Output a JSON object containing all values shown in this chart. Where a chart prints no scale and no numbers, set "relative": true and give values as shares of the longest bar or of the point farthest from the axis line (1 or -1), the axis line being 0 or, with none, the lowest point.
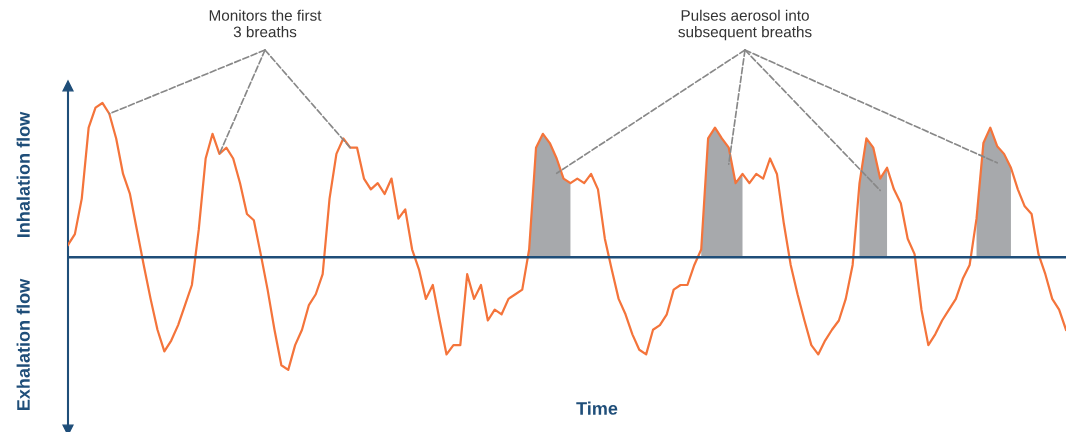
{
  "chart_data": {
    "type": "line",
    "relative": true,
    "xlabel": "Time",
    "ylabel": "Inhalation flow",
    "ref_lines": [
      {
        "axis": "y",
        "value": 0,
        "color": "#1f4e79"
      }
    ],
    "annotations": [
      "Monitors the first\n3 breaths",
      "Pulses aerosol into\nsubsequent breaths",
      "Exhalation flow"
    ],
    "categories": [
      null,
      null,
      null,
      null,
      null,
      null,
      null,
      null,
      null,
      null,
      null,
      null,
      null,
      null,
      null,
      null,
      null,
      null,
      null,
      null,
      null,
      null,
      null,
      null,
      null,
      null,
      null,
      null,
      null,
      null,
      null,
      null,
      null,
      null,
      null,
      null,
      null,
      null,
      null,
      null,
      null,
      null,
      null,
      null,
      null,
      null,
      null,
      null,
      null,
      null,
      null,
      null,
      null,
      null,
      null,
      null,
      null,
      null,
      null,
      null,
      null,
      null,
      null,
      null,
      null,
      null,
      null,
      null,
      null,
      null,
      null,
      null,
      null,
      null,
      null,
      null,
      null,
      null,
      null,
      null,
      null,
      null,
      null,
      null,
      null,
      null,
      null,
      null,
      null,
      null,
      null,
      null,
      null,
      null,
      null,
      null,
      null,
      null,
      null,
      null,
      null,
      null,
      null,
      null,
      null,
      null,
      null,
      null,
      null,
      null,
      null,
      null,
      null,
      null,
      null,
      null,
      null,
      null,
      null,
      null,
      null,
      null,
      null,
      null,
      null,
      null,
      null,
      null,
      null,
      null,
      null,
      null,
      null,
      null,
      null,
      null,
      null,
      null,
      null,
      null,
      null,
      null,
      null,
      null,
      null,
      null
    ],
    "series": [
      {
        "color": "#f4743b",
        "values": [
          0.08,
          0.15,
          0.38,
          0.84,
          0.97,
          1.0,
          0.93,
          0.77,
          0.54,
          0.41,
          0.18,
          -0.05,
          -0.27,
          -0.47,
          -0.61,
          -0.54,
          -0.44,
          -0.31,
          -0.18,
          0.18,
          0.64,
          0.8,
          0.67,
          0.71,
          0.64,
          0.48,
          0.28,
          0.24,
          0.02,
          -0.21,
          -0.47,
          -0.7,
          -0.73,
          -0.57,
          -0.47,
          -0.31,
          -0.24,
          -0.11,
          0.38,
          0.67,
          0.77,
          0.71,
          0.71,
          0.51,
          0.44,
          0.48,
          0.41,
          0.51,
          0.25,
          0.31,
          0.05,
          -0.08,
          -0.27,
          -0.18,
          -0.41,
          -0.63,
          -0.57,
          -0.57,
          -0.11,
          -0.27,
          -0.18,
          -0.41,
          -0.34,
          -0.37,
          -0.27,
          -0.24,
          -0.21,
          0.05,
          0.71,
          0.8,
          0.74,
          0.64,
          0.51,
          0.48,
          0.51,
          0.48,
          0.54,
          0.44,
          0.12,
          -0.08,
          -0.27,
          -0.37,
          -0.5,
          -0.6,
          -0.63,
          -0.47,
          -0.44,
          -0.37,
          -0.21,
          -0.18,
          -0.18,
          -0.05,
          0.05,
          0.77,
          0.84,
          0.77,
          0.71,
          0.48,
          0.54,
          0.48,
          0.54,
          0.51,
          0.64,
          0.54,
          0.22,
          -0.05,
          -0.24,
          -0.41,
          -0.57,
          -0.63,
          -0.54,
          -0.47,
          -0.41,
          -0.27,
          -0.05,
          0.48,
          0.77,
          0.71,
          0.51,
          0.58,
          0.44,
          0.35,
          0.12,
          0.02,
          -0.34,
          -0.57,
          -0.5,
          -0.41,
          -0.34,
          -0.27,
          -0.14,
          -0.05,
          0.25,
          0.74,
          0.84,
          0.72,
          0.67,
          0.58,
          0.44,
          0.33,
          0.28,
          0.02,
          -0.11,
          -0.27,
          -0.34,
          -0.47
        ]
      },
      {
        "type": "area",
        "color": "#a7a9ac",
        "values": [
          null,
          null,
          null,
          null,
          null,
          null,
          null,
          null,
          null,
          null,
          null,
          null,
          null,
          null,
          null,
          null,
          null,
          null,
          null,
          null,
          null,
          null,
          null,
          null,
          null,
          null,
          null,
          null,
          null,
          null,
          null,
          null,
          null,
          null,
          null,
          null,
          null,
          null,
          null,
          null,
          null,
          null,
          null,
          null,
          null,
          null,
          null,
          null,
          null,
          null,
          null,
          null,
          null,
          null,
          null,
          null,
          null,
          null,
          null,
          null,
          null,
          null,
          null,
          null,
          null,
          null,
          null,
          0.05,
          0.71,
          0.8,
          0.74,
          0.64,
          0.51,
          0.48,
          null,
          null,
          null,
          null,
          null,
          null,
          null,
          null,
          null,
          null,
          null,
          null,
          null,
          null,
          null,
          null,
          null,
          null,
          0.05,
          0.77,
          0.84,
          0.77,
          0.71,
          0.48,
          0.54,
          null,
          null,
          null,
          null,
          null,
          null,
          null,
          null,
          null,
          null,
          null,
          null,
          null,
          null,
          null,
          null,
          0.48,
          0.77,
          0.71,
          0.51,
          0.58,
          null,
          null,
          null,
          null,
          null,
          null,
          null,
          null,
          null,
          null,
          null,
          null,
          0.25,
          0.74,
          0.84,
          0.72,
          0.67,
          0.58,
          null,
          null,
          null,
          null,
          null,
          null,
          null,
          null
        ]
      }
    ]
  }
}
